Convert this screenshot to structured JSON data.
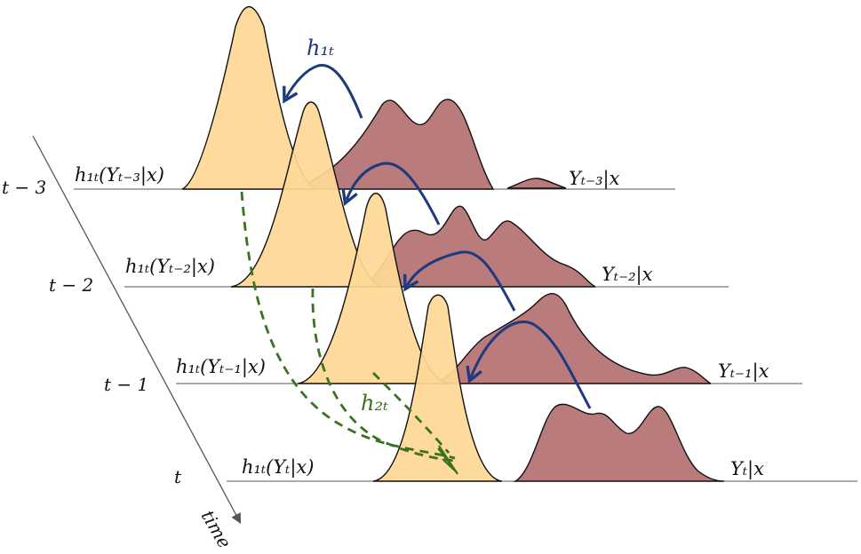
{
  "diagram": {
    "time_axis": {
      "label": "time",
      "ticks": [
        "t − 3",
        "t − 2",
        "t − 1",
        "t"
      ]
    },
    "rows": [
      {
        "left_label": "h₁ₜ(Yₜ₋₃|x)",
        "right_label": "Yₜ₋₃|x"
      },
      {
        "left_label": "h₁ₜ(Yₜ₋₂|x)",
        "right_label": "Yₜ₋₂|x"
      },
      {
        "left_label": "h₁ₜ(Yₜ₋₁|x)",
        "right_label": "Yₜ₋₁|x"
      },
      {
        "left_label": "h₁ₜ(Yₜ|x)",
        "right_label": "Yₜ|x"
      }
    ],
    "arrow_labels": {
      "h1": "h₁ₜ",
      "h2": "h₂ₜ"
    },
    "colors": {
      "orange_fill": "#fed896",
      "red_fill": "#b97b7c",
      "blue_arrow": "#1f3a7c",
      "green_arrow": "#3a7222",
      "axis": "#555555"
    }
  }
}
